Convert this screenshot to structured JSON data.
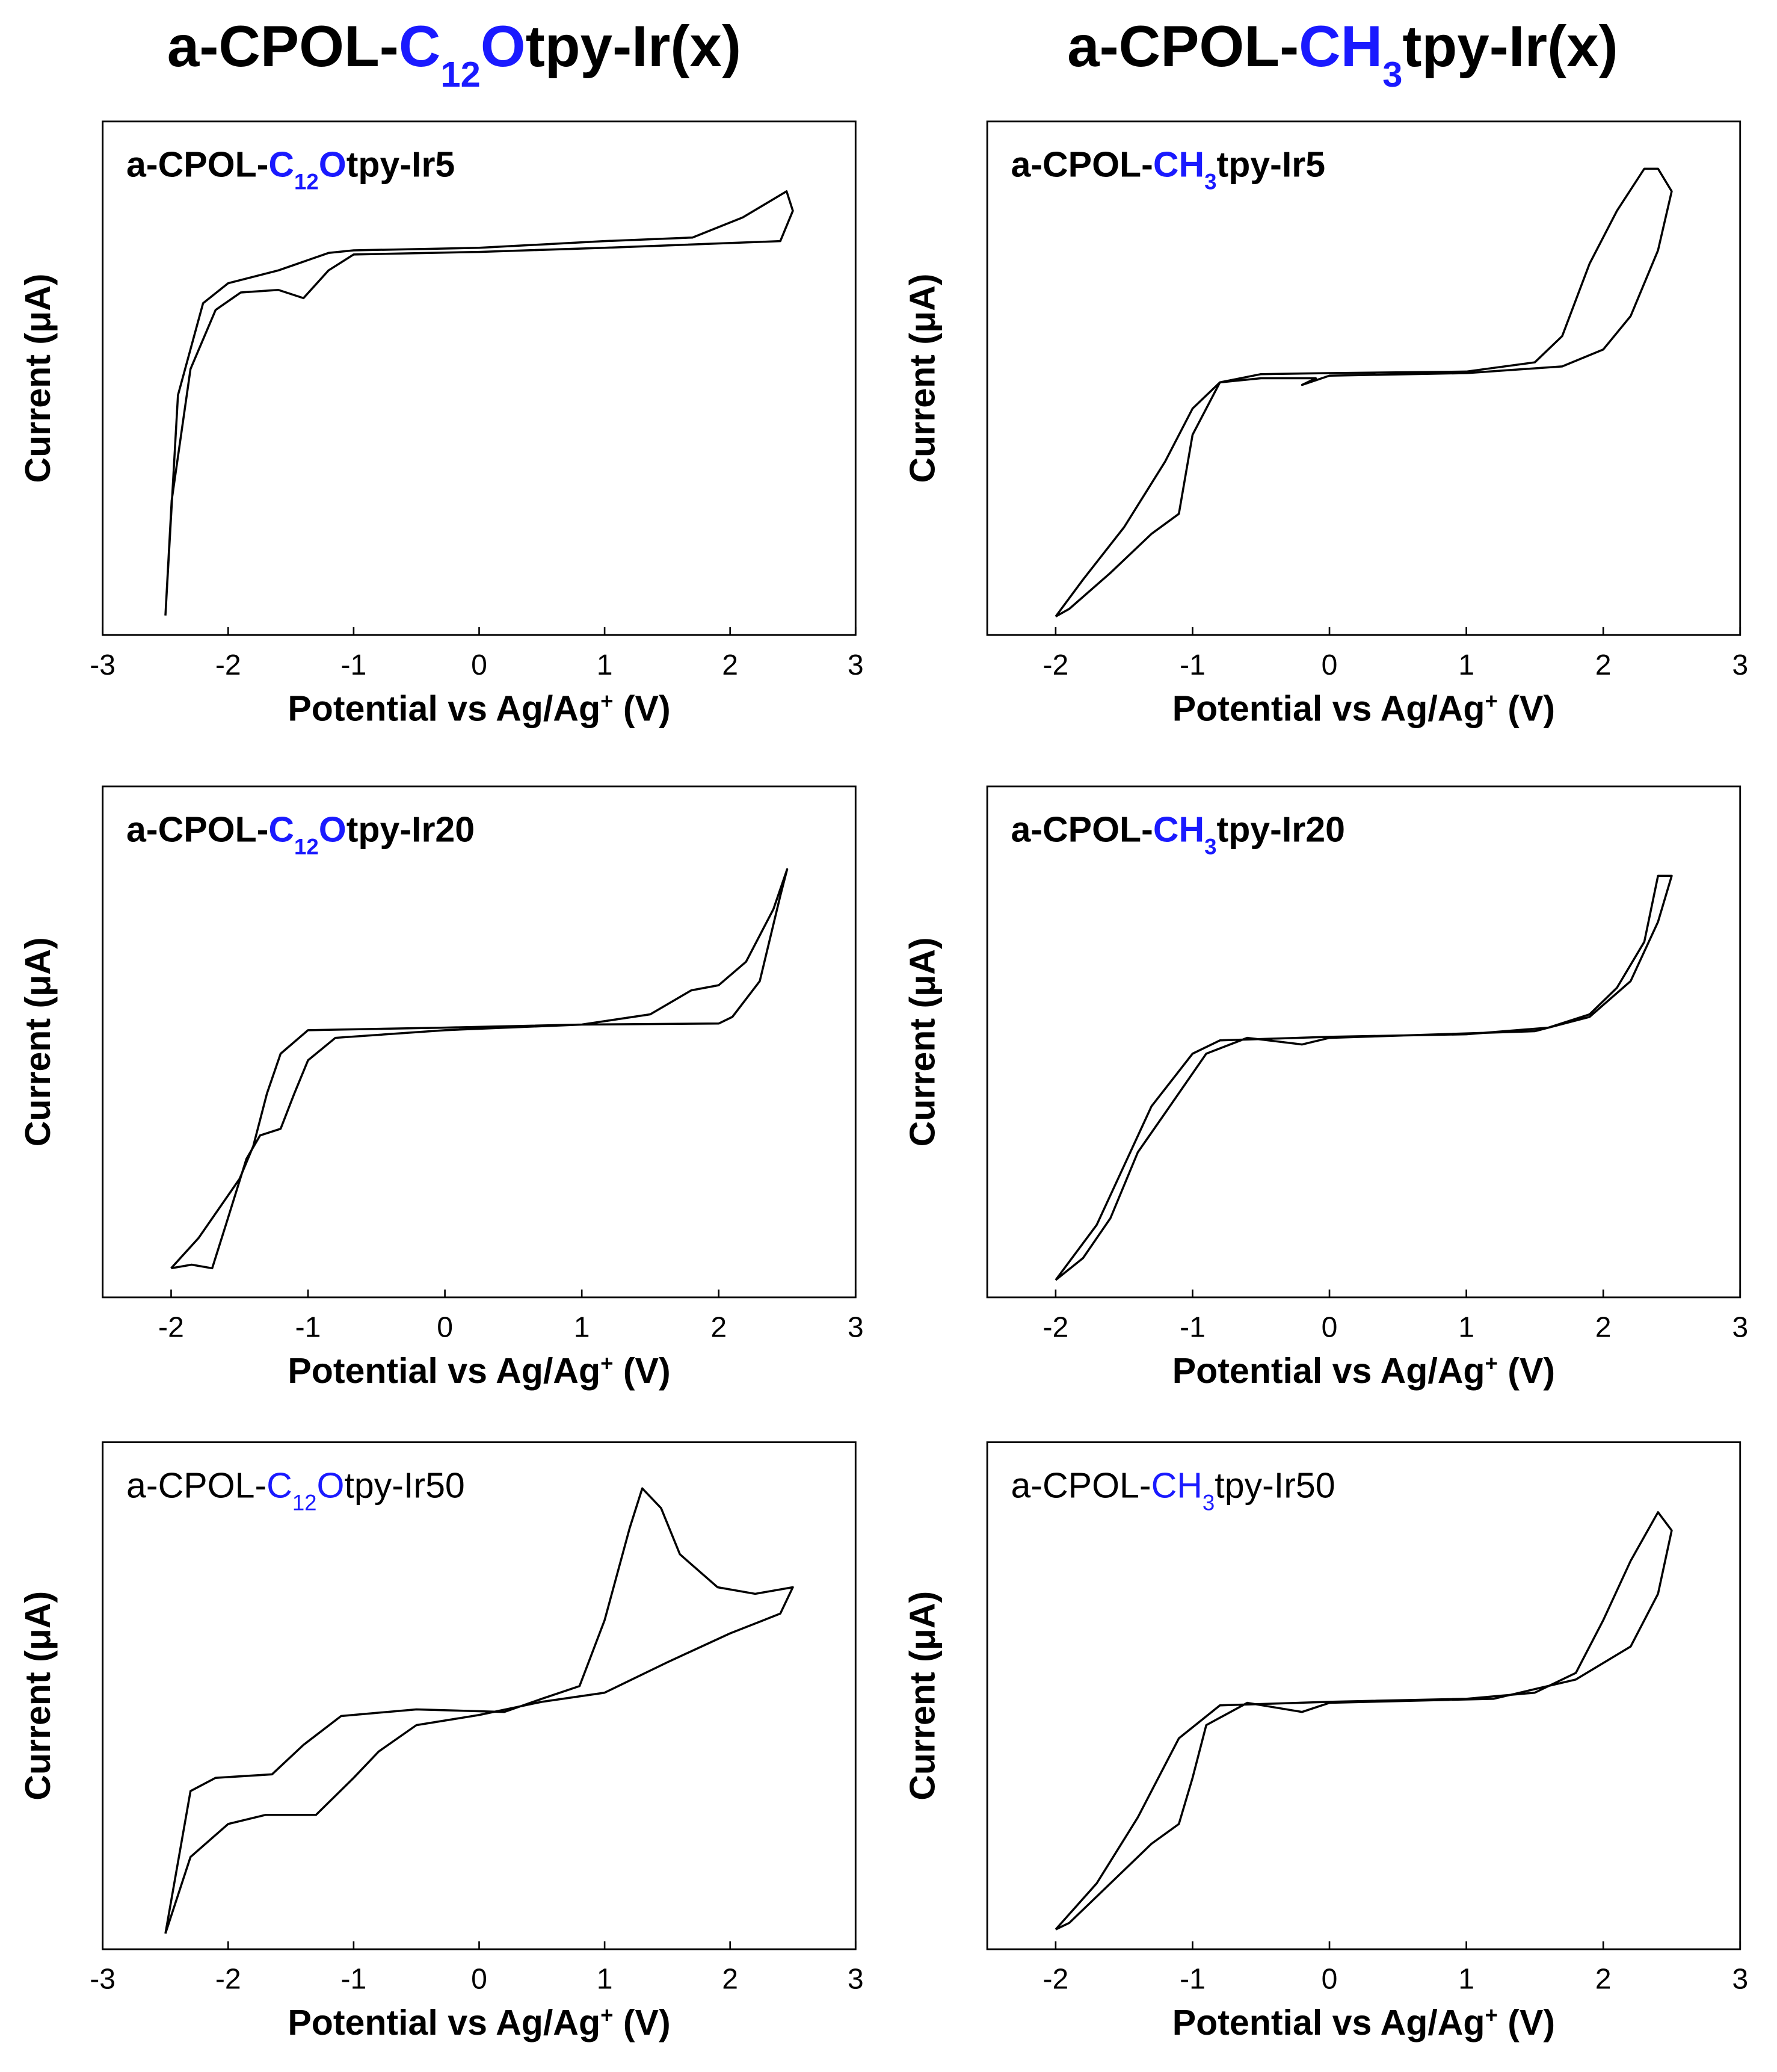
{
  "column_titles": [
    [
      {
        "text": "a-CPOL-"
      },
      {
        "text": "C",
        "color": "#1a1aff"
      },
      {
        "text": "12",
        "color": "#1a1aff",
        "sub": true
      },
      {
        "text": "O",
        "color": "#1a1aff"
      },
      {
        "text": "tpy-Ir(x)"
      }
    ],
    [
      {
        "text": "a-CPOL-"
      },
      {
        "text": "CH",
        "color": "#1a1aff"
      },
      {
        "text": "3",
        "color": "#1a1aff",
        "sub": true
      },
      {
        "text": "tpy-Ir(x)"
      }
    ]
  ],
  "chart_data": [
    {
      "type": "line",
      "title": [
        {
          "text": "a-CPOL-"
        },
        {
          "text": "C",
          "color": "#1a1aff"
        },
        {
          "text": "12",
          "color": "#1a1aff",
          "sub": true
        },
        {
          "text": "O",
          "color": "#1a1aff"
        },
        {
          "text": "tpy-Ir5"
        }
      ],
      "xlabel": [
        {
          "text": "Potential vs Ag/Ag"
        },
        {
          "text": "+",
          "sup": true
        },
        {
          "text": " (V)"
        }
      ],
      "ylabel": "Current (μA)",
      "xlim": [
        -3,
        3
      ],
      "xticks": [
        -3,
        -2,
        -1,
        0,
        1,
        2,
        3
      ],
      "ylim": [
        0,
        100
      ],
      "series": [
        {
          "color": "#000000",
          "x": [
            -2.5,
            -2.4,
            -2.2,
            -2.0,
            -1.6,
            -1.2,
            -1.0,
            0,
            1,
            1.7,
            2.1,
            2.45,
            2.5,
            2.4,
            1,
            0,
            -1,
            -1.2,
            -1.4,
            -1.6,
            -1.9,
            -2.1,
            -2.3,
            -2.45,
            -2.5
          ],
          "values": [
            3.8,
            46.7,
            64.6,
            68.5,
            71.0,
            74.4,
            74.9,
            75.4,
            76.7,
            77.4,
            81.3,
            86.4,
            82.6,
            76.7,
            75.4,
            74.6,
            74.1,
            71.0,
            65.6,
            67.2,
            66.7,
            63.3,
            51.8,
            26.2,
            3.8
          ]
        }
      ]
    },
    {
      "type": "line",
      "title": [
        {
          "text": "a-CPOL-"
        },
        {
          "text": "C",
          "color": "#1a1aff"
        },
        {
          "text": "12",
          "color": "#1a1aff",
          "sub": true
        },
        {
          "text": "O",
          "color": "#1a1aff"
        },
        {
          "text": "tpy-Ir20"
        }
      ],
      "xlabel": [
        {
          "text": "Potential vs Ag/Ag"
        },
        {
          "text": "+",
          "sup": true
        },
        {
          "text": " (V)"
        }
      ],
      "ylabel": "Current (μA)",
      "xlim": [
        -2.5,
        3
      ],
      "xticks": [
        -2,
        -1,
        0,
        1,
        2,
        3
      ],
      "ylim": [
        0,
        100
      ],
      "series": [
        {
          "color": "#000000",
          "x": [
            -2,
            -1.8,
            -1.5,
            -1.4,
            -1.3,
            -1.2,
            -1.0,
            0,
            1,
            1.5,
            1.8,
            2.0,
            2.2,
            2.4,
            2.5,
            2.45,
            2.3,
            2.1,
            2.0,
            1,
            0,
            -0.8,
            -1.0,
            -1.1,
            -1.2,
            -1.35,
            -1.45,
            -1.6,
            -1.7,
            -1.85,
            -2
          ],
          "values": [
            5.7,
            11.6,
            23.2,
            29.6,
            39.9,
            47.7,
            52.3,
            52.8,
            53.4,
            55.4,
            60.1,
            61.1,
            65.7,
            76.0,
            83.8,
            78.6,
            61.9,
            54.9,
            53.6,
            53.4,
            52.3,
            50.8,
            46.4,
            39.9,
            33.0,
            31.7,
            27.1,
            14.2,
            5.7,
            6.4,
            5.7
          ]
        }
      ]
    },
    {
      "type": "line",
      "title": [
        {
          "text": "a-CPOL-"
        },
        {
          "text": "C",
          "color": "#1a1aff"
        },
        {
          "text": "12",
          "color": "#1a1aff",
          "sub": true
        },
        {
          "text": "O",
          "color": "#1a1aff"
        },
        {
          "text": "tpy-Ir50"
        }
      ],
      "xlabel": [
        {
          "text": "Potential vs Ag/Ag"
        },
        {
          "text": "+",
          "sup": true
        },
        {
          "text": " (V)"
        }
      ],
      "ylabel": "Current (μA)",
      "xlim": [
        -3,
        3
      ],
      "xticks": [
        -3,
        -2,
        -1,
        0,
        1,
        2,
        3
      ],
      "ylim": [
        0,
        100
      ],
      "series": [
        {
          "color": "#000000",
          "x": [
            -2.5,
            -2.3,
            -2.1,
            -1.65,
            -1.4,
            -1.1,
            -0.5,
            0.2,
            0.5,
            0.8,
            1.0,
            1.2,
            1.3,
            1.45,
            1.6,
            1.9,
            2.2,
            2.5,
            2.4,
            2.0,
            1.5,
            1.0,
            0.5,
            0,
            -0.5,
            -0.8,
            -1.0,
            -1.3,
            -1.7,
            -2.0,
            -2.3,
            -2.5
          ],
          "values": [
            3.1,
            31.2,
            33.8,
            34.5,
            40.3,
            46.0,
            47.3,
            46.8,
            49.4,
            51.9,
            64.9,
            83.1,
            90.9,
            87.0,
            77.9,
            71.4,
            70.1,
            71.4,
            66.2,
            62.3,
            56.6,
            50.6,
            48.8,
            46.2,
            44.2,
            39.0,
            33.8,
            26.5,
            26.5,
            24.7,
            18.2,
            3.1
          ]
        }
      ]
    },
    {
      "type": "line",
      "title": [
        {
          "text": "a-CPOL-"
        },
        {
          "text": "CH",
          "color": "#1a1aff"
        },
        {
          "text": "3",
          "color": "#1a1aff",
          "sub": true
        },
        {
          "text": "tpy-Ir5"
        }
      ],
      "xlabel": [
        {
          "text": "Potential vs Ag/Ag"
        },
        {
          "text": "+",
          "sup": true
        },
        {
          "text": " (V)"
        }
      ],
      "ylabel": "Current (μA)",
      "xlim": [
        -2.5,
        3
      ],
      "xticks": [
        -2,
        -1,
        0,
        1,
        2,
        3
      ],
      "ylim": [
        0,
        100
      ],
      "series": [
        {
          "color": "#000000",
          "x": [
            -2,
            -1.8,
            -1.5,
            -1.2,
            -1.0,
            -0.8,
            -0.5,
            0,
            1,
            1.5,
            1.7,
            1.9,
            2.1,
            2.3,
            2.4,
            2.5,
            2.4,
            2.2,
            2.0,
            1.7,
            1,
            0,
            -0.2,
            -0.1,
            -0.5,
            -0.8,
            -1.0,
            -1.1,
            -1.3,
            -1.6,
            -1.9,
            -2
          ],
          "values": [
            3.6,
            10.8,
            21.0,
            33.8,
            44.1,
            49.2,
            50.8,
            51.0,
            51.3,
            53.1,
            58.2,
            72.3,
            82.6,
            90.8,
            90.8,
            86.4,
            74.9,
            62.1,
            55.6,
            52.3,
            51.0,
            50.5,
            48.7,
            50.0,
            50.0,
            49.2,
            39.0,
            23.6,
            19.7,
            12.1,
            5.1,
            3.6
          ]
        }
      ]
    },
    {
      "type": "line",
      "title": [
        {
          "text": "a-CPOL-"
        },
        {
          "text": "CH",
          "color": "#1a1aff"
        },
        {
          "text": "3",
          "color": "#1a1aff",
          "sub": true
        },
        {
          "text": "tpy-Ir20"
        }
      ],
      "xlabel": [
        {
          "text": "Potential vs Ag/Ag"
        },
        {
          "text": "+",
          "sup": true
        },
        {
          "text": " (V)"
        }
      ],
      "ylabel": "Current (μA)",
      "xlim": [
        -2.5,
        3
      ],
      "xticks": [
        -2,
        -1,
        0,
        1,
        2,
        3
      ],
      "ylim": [
        0,
        100
      ],
      "series": [
        {
          "color": "#000000",
          "x": [
            -2,
            -1.7,
            -1.5,
            -1.3,
            -1.0,
            -0.8,
            0,
            1,
            1.6,
            1.9,
            2.1,
            2.3,
            2.4,
            2.5,
            2.4,
            2.2,
            1.9,
            1.5,
            0,
            -0.2,
            -0.6,
            -0.9,
            -1.2,
            -1.4,
            -1.6,
            -1.8,
            -2
          ],
          "values": [
            3.4,
            14.2,
            25.8,
            37.4,
            47.7,
            50.3,
            51.0,
            51.5,
            52.8,
            55.4,
            60.6,
            69.6,
            82.5,
            82.5,
            73.5,
            61.9,
            54.9,
            52.1,
            50.8,
            49.5,
            50.8,
            47.7,
            36.1,
            28.4,
            15.5,
            7.7,
            3.4
          ]
        }
      ]
    },
    {
      "type": "line",
      "title": [
        {
          "text": "a-CPOL-"
        },
        {
          "text": "CH",
          "color": "#1a1aff"
        },
        {
          "text": "3",
          "color": "#1a1aff",
          "sub": true
        },
        {
          "text": "tpy-Ir50"
        }
      ],
      "xlabel": [
        {
          "text": "Potential vs Ag/Ag"
        },
        {
          "text": "+",
          "sup": true
        },
        {
          "text": " (V)"
        }
      ],
      "ylabel": "Current (μA)",
      "xlim": [
        -2.5,
        3
      ],
      "xticks": [
        -2,
        -1,
        0,
        1,
        2,
        3
      ],
      "ylim": [
        0,
        100
      ],
      "series": [
        {
          "color": "#000000",
          "x": [
            -2,
            -1.7,
            -1.4,
            -1.1,
            -0.8,
            0,
            1,
            1.5,
            1.8,
            2.0,
            2.2,
            2.4,
            2.5,
            2.4,
            2.2,
            1.8,
            1.2,
            0,
            -0.2,
            -0.6,
            -0.9,
            -1.0,
            -1.1,
            -1.3,
            -1.6,
            -1.9,
            -2
          ],
          "values": [
            3.9,
            13.0,
            26.0,
            41.6,
            48.1,
            48.8,
            49.4,
            50.6,
            54.5,
            64.9,
            76.6,
            86.2,
            82.6,
            70.1,
            59.7,
            53.2,
            49.4,
            48.6,
            46.8,
            48.6,
            44.2,
            33.8,
            24.7,
            20.8,
            13.0,
            5.2,
            3.9
          ]
        }
      ]
    }
  ]
}
